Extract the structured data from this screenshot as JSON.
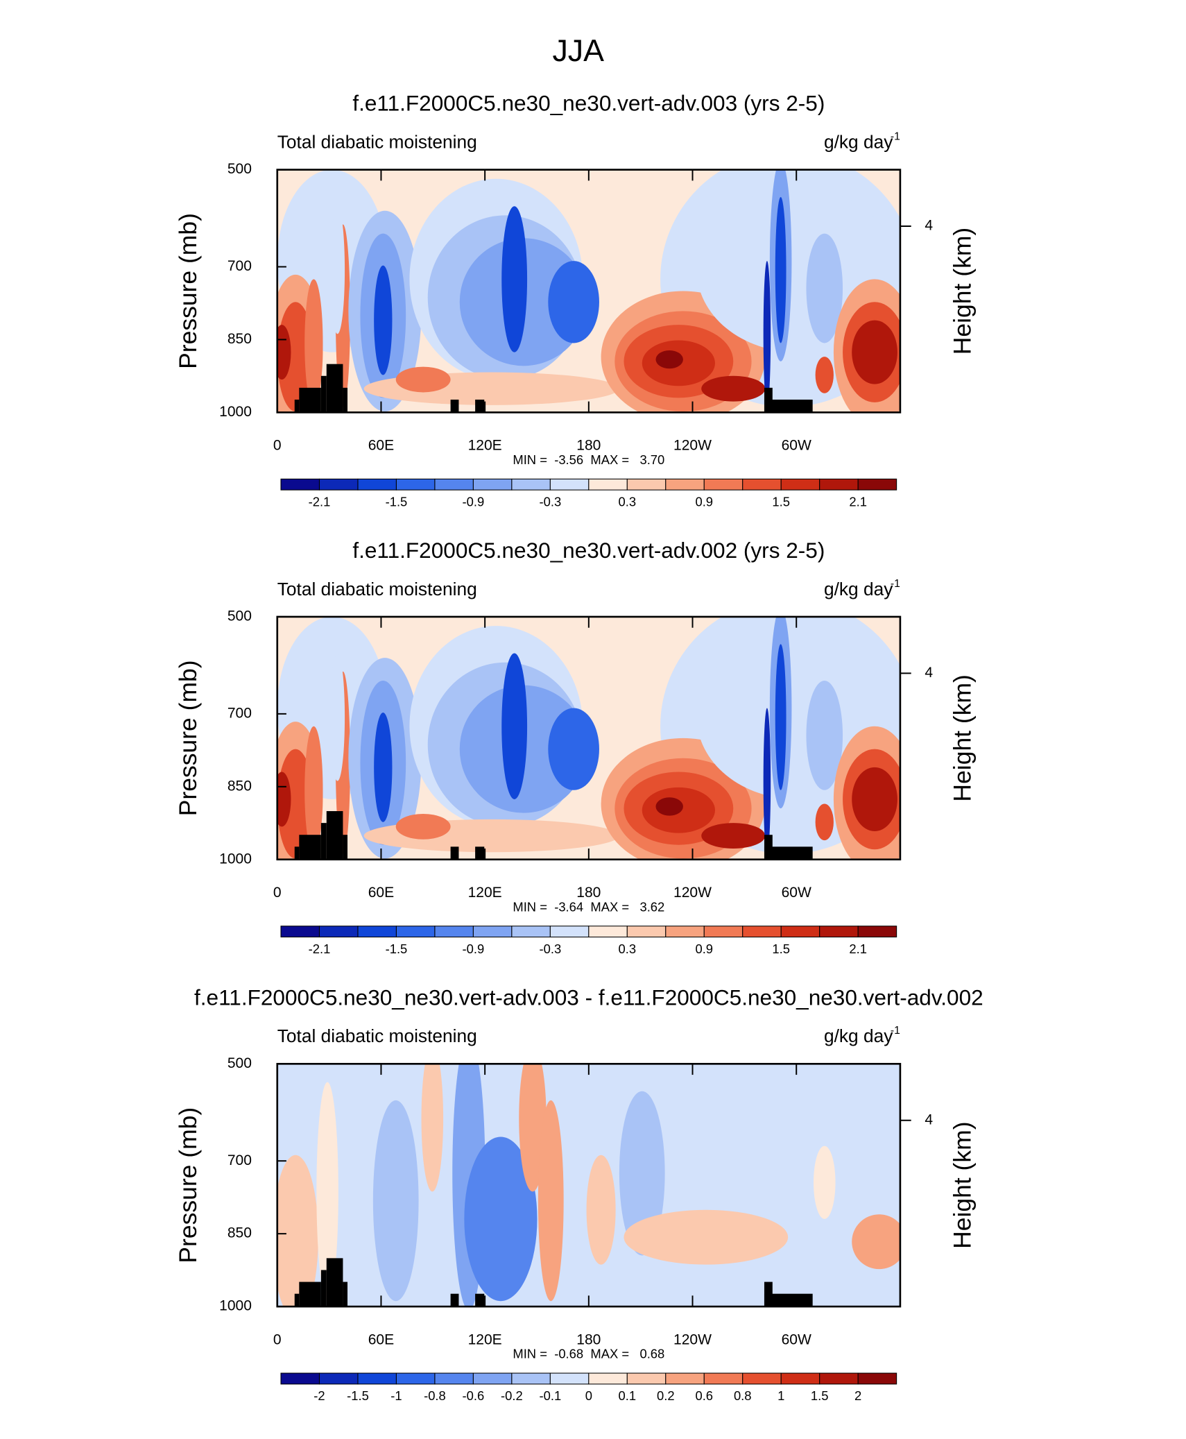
{
  "title": "JJA",
  "chart_data": [
    {
      "type": "contour",
      "title": "f.e11.F2000C5.ne30_ne30.vert-adv.003 (yrs 2-5)",
      "left_label": "Total diabatic moistening",
      "units": "g/kg day",
      "units_exponent": "-1",
      "ylabel": "Pressure (mb)",
      "y2label": "Height (km)",
      "ylim": [
        1000,
        500
      ],
      "yticks": [
        500,
        700,
        850,
        1000
      ],
      "y2ticks": [
        4
      ],
      "xlim": [
        0,
        360
      ],
      "xticks": [
        0,
        {
          "value": 60,
          "label": "60E"
        },
        {
          "value": 120,
          "label": "120E"
        },
        180,
        {
          "value": 240,
          "label": "120W"
        },
        {
          "value": 300,
          "label": "60W"
        }
      ],
      "stats": "MIN =  -3.56  MAX =   3.70",
      "colorbar_ticks": [
        -2.1,
        -1.5,
        -0.9,
        -0.3,
        0.3,
        0.9,
        1.5,
        2.1
      ],
      "colors": [
        "#0a0a8f",
        "#0c29b8",
        "#1046d8",
        "#2d66e8",
        "#5585ee",
        "#7fa4f2",
        "#a9c3f6",
        "#d3e2fb",
        "#fde9da",
        "#fbc9ae",
        "#f7a37f",
        "#f17a55",
        "#e5502f",
        "#cf2e16",
        "#b0170b",
        "#8a0808"
      ]
    },
    {
      "type": "contour",
      "title": "f.e11.F2000C5.ne30_ne30.vert-adv.002 (yrs 2-5)",
      "left_label": "Total diabatic moistening",
      "units": "g/kg day",
      "units_exponent": "-1",
      "ylabel": "Pressure (mb)",
      "y2label": "Height (km)",
      "ylim": [
        1000,
        500
      ],
      "yticks": [
        500,
        700,
        850,
        1000
      ],
      "y2ticks": [
        4
      ],
      "xlim": [
        0,
        360
      ],
      "xticks": [
        0,
        {
          "value": 60,
          "label": "60E"
        },
        {
          "value": 120,
          "label": "120E"
        },
        180,
        {
          "value": 240,
          "label": "120W"
        },
        {
          "value": 300,
          "label": "60W"
        }
      ],
      "stats": "MIN =  -3.64  MAX =   3.62",
      "colorbar_ticks": [
        -2.1,
        -1.5,
        -0.9,
        -0.3,
        0.3,
        0.9,
        1.5,
        2.1
      ],
      "colors": [
        "#0a0a8f",
        "#0c29b8",
        "#1046d8",
        "#2d66e8",
        "#5585ee",
        "#7fa4f2",
        "#a9c3f6",
        "#d3e2fb",
        "#fde9da",
        "#fbc9ae",
        "#f7a37f",
        "#f17a55",
        "#e5502f",
        "#cf2e16",
        "#b0170b",
        "#8a0808"
      ]
    },
    {
      "type": "contour",
      "title": "f.e11.F2000C5.ne30_ne30.vert-adv.003 - f.e11.F2000C5.ne30_ne30.vert-adv.002",
      "left_label": "Total diabatic moistening",
      "units": "g/kg day",
      "units_exponent": "-1",
      "ylabel": "Pressure (mb)",
      "y2label": "Height (km)",
      "ylim": [
        1000,
        500
      ],
      "yticks": [
        500,
        700,
        850,
        1000
      ],
      "y2ticks": [
        4
      ],
      "xlim": [
        0,
        360
      ],
      "xticks": [
        0,
        {
          "value": 60,
          "label": "60E"
        },
        {
          "value": 120,
          "label": "120E"
        },
        180,
        {
          "value": 240,
          "label": "120W"
        },
        {
          "value": 300,
          "label": "60W"
        }
      ],
      "stats": "MIN =  -0.68  MAX =   0.68",
      "colorbar_ticks": [
        -2,
        -1.5,
        -1,
        -0.8,
        -0.6,
        -0.2,
        -0.1,
        0,
        0.1,
        0.2,
        0.6,
        0.8,
        1,
        1.5,
        2
      ],
      "colors": [
        "#0a0a8f",
        "#0c29b8",
        "#1046d8",
        "#2d66e8",
        "#5585ee",
        "#7fa4f2",
        "#a9c3f6",
        "#d3e2fb",
        "#fde9da",
        "#fbc9ae",
        "#f7a37f",
        "#f17a55",
        "#e5502f",
        "#cf2e16",
        "#b0170b",
        "#8a0808"
      ]
    }
  ]
}
